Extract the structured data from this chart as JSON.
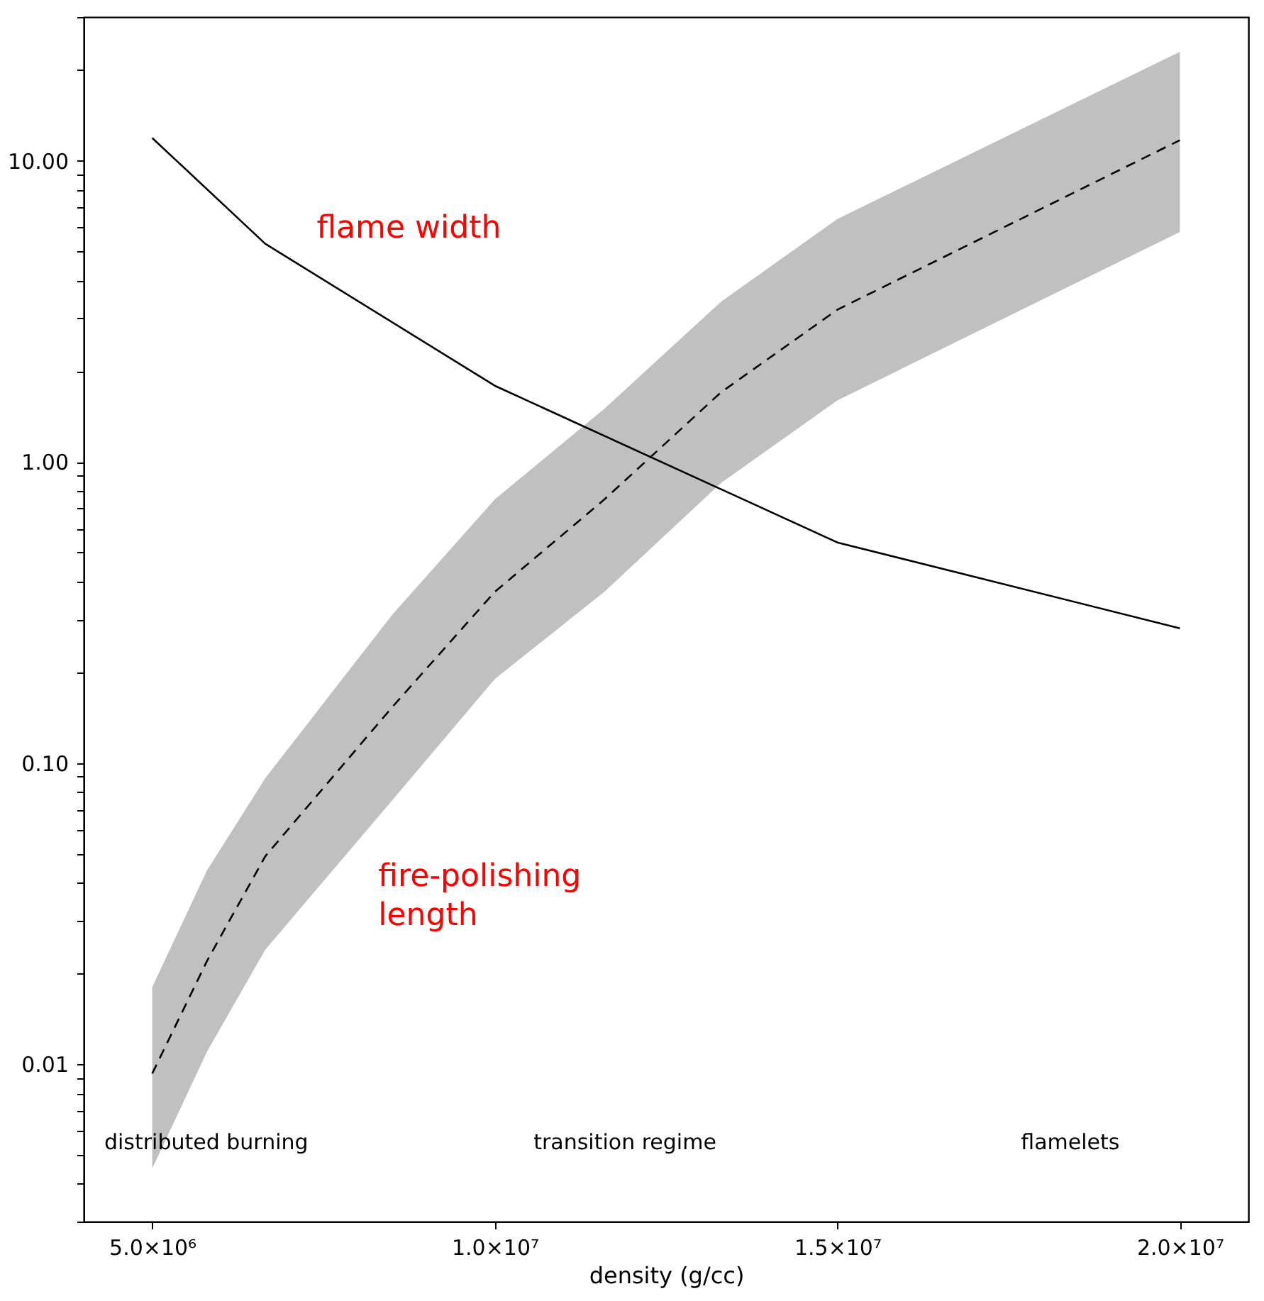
{
  "chart_data": {
    "type": "line",
    "xlabel": "density (g/cc)",
    "log": "y",
    "grid": false,
    "xlim": [
      4000000,
      21000000
    ],
    "ylim": [
      0.003,
      30
    ],
    "xticks": [
      {
        "value": 5000000,
        "label": "5.0×10⁶"
      },
      {
        "value": 10000000,
        "label": "1.0×10⁷"
      },
      {
        "value": 15000000,
        "label": "1.5×10⁷"
      },
      {
        "value": 20000000,
        "label": "2.0×10⁷"
      }
    ],
    "yticks": [
      {
        "value": 0.003,
        "label": null
      },
      {
        "value": 0.004,
        "label": null
      },
      {
        "value": 0.005,
        "label": null
      },
      {
        "value": 0.006,
        "label": null
      },
      {
        "value": 0.007,
        "label": null
      },
      {
        "value": 0.008,
        "label": null
      },
      {
        "value": 0.009,
        "label": null
      },
      {
        "value": 0.01,
        "label": "0.01"
      },
      {
        "value": 0.02,
        "label": null
      },
      {
        "value": 0.03,
        "label": null
      },
      {
        "value": 0.04,
        "label": null
      },
      {
        "value": 0.05,
        "label": null
      },
      {
        "value": 0.06,
        "label": null
      },
      {
        "value": 0.07,
        "label": null
      },
      {
        "value": 0.08,
        "label": null
      },
      {
        "value": 0.09,
        "label": null
      },
      {
        "value": 0.1,
        "label": "0.10"
      },
      {
        "value": 0.2,
        "label": null
      },
      {
        "value": 0.3,
        "label": null
      },
      {
        "value": 0.4,
        "label": null
      },
      {
        "value": 0.5,
        "label": null
      },
      {
        "value": 0.6,
        "label": null
      },
      {
        "value": 0.7,
        "label": null
      },
      {
        "value": 0.8,
        "label": null
      },
      {
        "value": 0.9,
        "label": null
      },
      {
        "value": 1,
        "label": "1.00"
      },
      {
        "value": 2,
        "label": null
      },
      {
        "value": 3,
        "label": null
      },
      {
        "value": 4,
        "label": null
      },
      {
        "value": 5,
        "label": null
      },
      {
        "value": 6,
        "label": null
      },
      {
        "value": 7,
        "label": null
      },
      {
        "value": 8,
        "label": null
      },
      {
        "value": 9,
        "label": null
      },
      {
        "value": 10,
        "label": "10.00"
      },
      {
        "value": 20,
        "label": null
      },
      {
        "value": 30,
        "label": null
      }
    ],
    "series": [
      {
        "color": "#000000",
        "line_style": "solid",
        "x": [
          5000000,
          6650000,
          10000000,
          15000000,
          20000000
        ],
        "values": [
          11.9,
          5.3,
          1.79,
          0.54,
          0.28
        ]
      },
      {
        "color": "#000000",
        "line_style": "dashed",
        "x": [
          5000000,
          5800000,
          6650000,
          8500000,
          10000000,
          11600000,
          13300000,
          15000000,
          20000000
        ],
        "values": [
          0.0093,
          0.022,
          0.049,
          0.153,
          0.37,
          0.75,
          1.7,
          3.2,
          11.7
        ],
        "lower": [
          0.0045,
          0.011,
          0.024,
          0.075,
          0.19,
          0.37,
          0.85,
          1.6,
          5.8
        ],
        "upper": [
          0.018,
          0.044,
          0.089,
          0.31,
          0.75,
          1.5,
          3.4,
          6.4,
          23
        ]
      }
    ],
    "annotations": [
      "flame width",
      "fire-polishing\nlength",
      "distributed burning",
      "transition regime",
      "flamelets"
    ]
  }
}
